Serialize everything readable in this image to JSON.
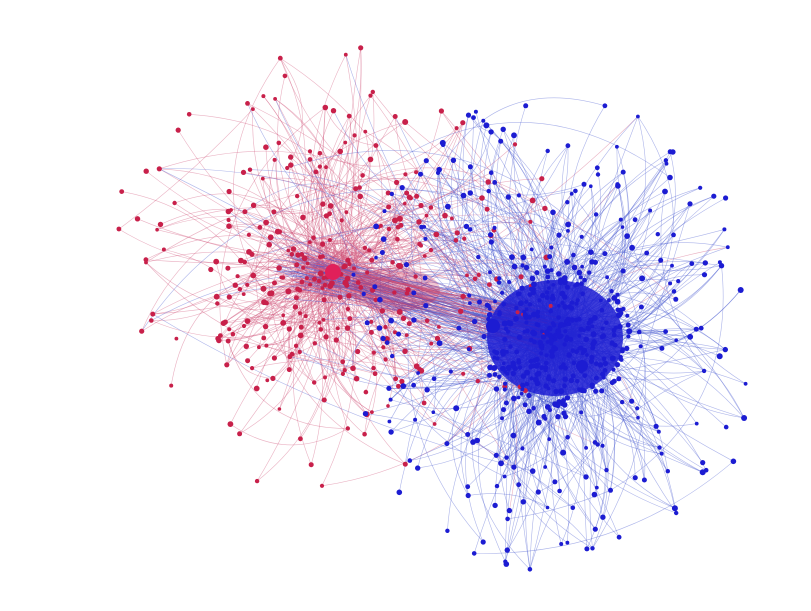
{
  "graph": {
    "type": "network",
    "clusters": [
      {
        "id": "red",
        "color": "#c8204a",
        "edge_color": "#d0557a"
      },
      {
        "id": "blue",
        "color": "#1c1cd2",
        "edge_color": "#4a5ad0"
      }
    ],
    "background": "#ffffff"
  }
}
